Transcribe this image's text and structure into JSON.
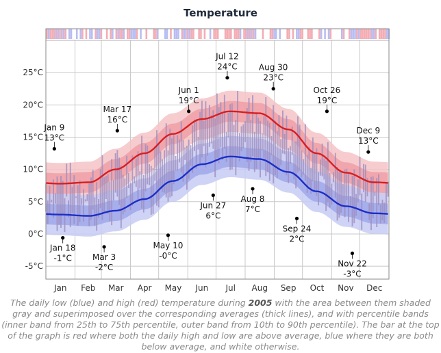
{
  "chart_data": {
    "type": "area",
    "title": "Temperature",
    "y_unit": "°C",
    "ylim": [
      -7,
      30
    ],
    "y_ticks": [
      {
        "value": 25,
        "label": "25°C"
      },
      {
        "value": 20,
        "label": "20°C"
      },
      {
        "value": 15,
        "label": "15°C"
      },
      {
        "value": 10,
        "label": "10°C"
      },
      {
        "value": 5,
        "label": "5°C"
      },
      {
        "value": 0,
        "label": "0°C"
      },
      {
        "value": -5,
        "label": "-5°C"
      }
    ],
    "months": [
      "Jan",
      "Feb",
      "Mar",
      "Apr",
      "May",
      "Jun",
      "Jul",
      "Aug",
      "Sep",
      "Oct",
      "Nov",
      "Dec"
    ],
    "grid": true,
    "avg_high_monthly": [
      7.8,
      8.0,
      10.0,
      12.5,
      15.5,
      17.8,
      19.0,
      18.7,
      16.2,
      12.5,
      9.5,
      8.0
    ],
    "avg_low_monthly": [
      3.0,
      2.8,
      3.6,
      5.4,
      8.2,
      10.8,
      12.0,
      11.6,
      9.6,
      6.6,
      4.3,
      3.2
    ],
    "series": [
      {
        "name": "daily high",
        "color": "#e0202a"
      },
      {
        "name": "daily low",
        "color": "#1f2fd6"
      }
    ],
    "annotations": [
      {
        "date": "Jan 9",
        "value": "13°C",
        "y": 13.2,
        "doy": 9,
        "pos": "above"
      },
      {
        "date": "Jan 18",
        "value": "-1°C",
        "y": -0.6,
        "doy": 18,
        "pos": "below"
      },
      {
        "date": "Mar 3",
        "value": "-2°C",
        "y": -2.0,
        "doy": 62,
        "pos": "below"
      },
      {
        "date": "Mar 17",
        "value": "16°C",
        "y": 16.0,
        "doy": 76,
        "pos": "above"
      },
      {
        "date": "May 10",
        "value": "-0°C",
        "y": -0.2,
        "doy": 130,
        "pos": "below"
      },
      {
        "date": "Jun 1",
        "value": "19°C",
        "y": 19.0,
        "doy": 152,
        "pos": "above"
      },
      {
        "date": "Jun 27",
        "value": "6°C",
        "y": 6.0,
        "doy": 178,
        "pos": "below"
      },
      {
        "date": "Jul 12",
        "value": "24°C",
        "y": 24.2,
        "doy": 193,
        "pos": "above"
      },
      {
        "date": "Aug 8",
        "value": "7°C",
        "y": 7.0,
        "doy": 220,
        "pos": "below"
      },
      {
        "date": "Aug 30",
        "value": "23°C",
        "y": 22.5,
        "doy": 242,
        "pos": "above"
      },
      {
        "date": "Sep 24",
        "value": "2°C",
        "y": 2.4,
        "doy": 267,
        "pos": "below"
      },
      {
        "date": "Oct 26",
        "value": "19°C",
        "y": 19.0,
        "doy": 299,
        "pos": "above"
      },
      {
        "date": "Nov 22",
        "value": "-3°C",
        "y": -3.0,
        "doy": 326,
        "pos": "below"
      },
      {
        "date": "Dec 9",
        "value": "13°C",
        "y": 12.7,
        "doy": 343,
        "pos": "above"
      }
    ],
    "colors": {
      "band_high_outer": "#f6c3c6",
      "band_high_inner": "#ee9aa0",
      "band_low_outer": "#c7cbf3",
      "band_low_inner": "#9aa2e8",
      "overlap_gray": "#a9a9a9",
      "daily_bar": "#9c8fc0",
      "avg_high_line": "#d81e22",
      "avg_low_line": "#1b2ec8",
      "grid": "#c8c8c8"
    }
  },
  "caption": {
    "part1": "The daily low (blue) and high (red) temperature during ",
    "year": "2005",
    "part2": " with the area between them shaded gray and superimposed over the corresponding averages (thick lines), and with percentile bands (inner band from 25th to 75th percentile, outer band from 10th to 90th percentile). The bar at the top of the graph is red where both the daily high and low are above average, blue where they are both below average, and white otherwise."
  }
}
